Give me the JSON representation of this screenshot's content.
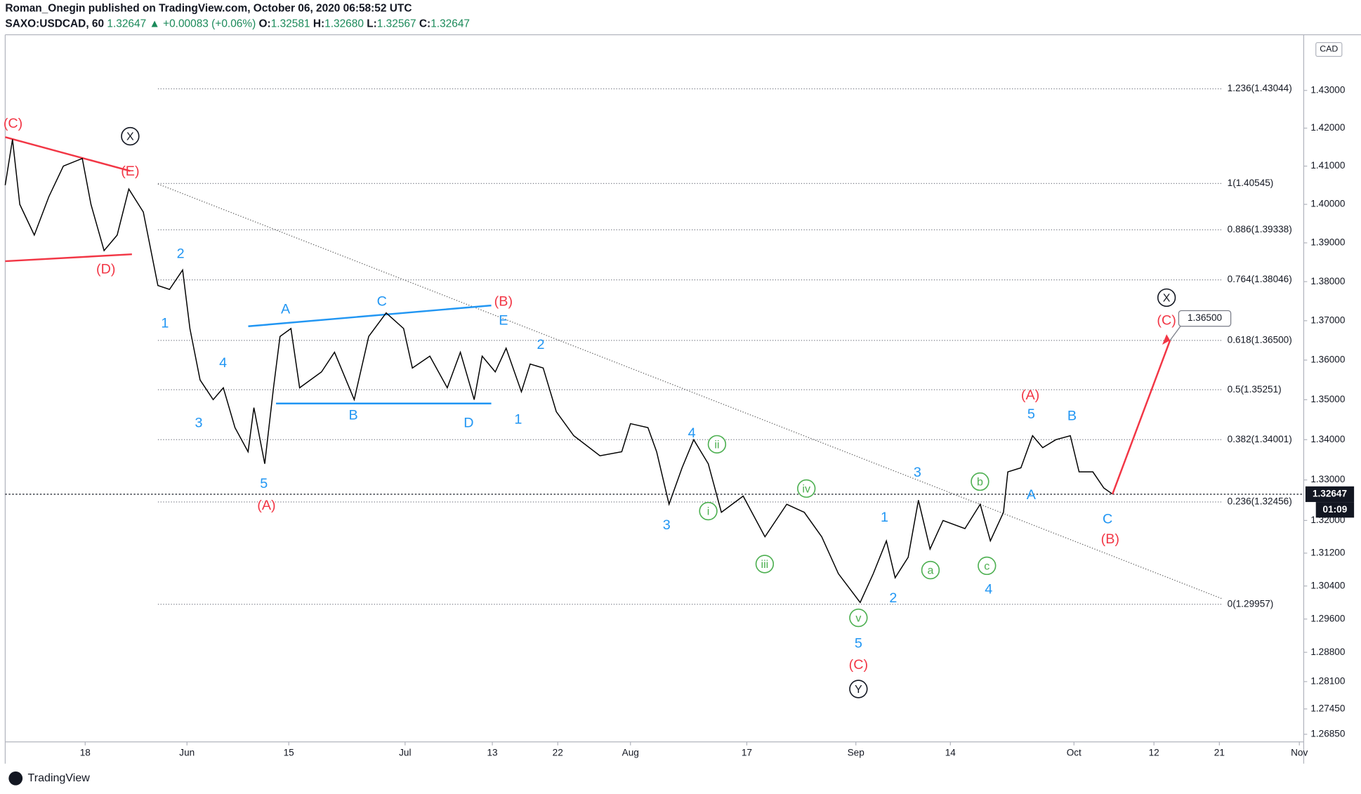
{
  "header": {
    "byline": "Roman_Onegin published on TradingView.com, October 06, 2020 06:58:52 UTC",
    "symbol": "SAXO:USDCAD, 60",
    "price": "1.32647",
    "change": "▲ +0.00083 (+0.06%)",
    "o_label": "O:",
    "o": "1.32581",
    "h_label": "H:",
    "h": "1.32680",
    "l_label": "L:",
    "l": "1.32567",
    "c_label": "C:",
    "c": "1.32647"
  },
  "footer": {
    "brand": "TradingView"
  },
  "chart_data": {
    "type": "line",
    "currency": "CAD",
    "log": true,
    "color": "#000000",
    "x": [
      128,
      129,
      130,
      132,
      134,
      136,
      138.6,
      139.8,
      141.6,
      143.4,
      145,
      147,
      149,
      150.6,
      152.4,
      153.4,
      154.8,
      156.6,
      158,
      159.6,
      161.4,
      162.2,
      163.7,
      164.9,
      165.8,
      167.3,
      168.5,
      171.5,
      173.3,
      176,
      178,
      180.4,
      182.8,
      184,
      186.4,
      188.8,
      190.6,
      192.5,
      193.6,
      195.4,
      196.9,
      199,
      200.2,
      202,
      203.8,
      206.2,
      209.8,
      212.8,
      214,
      216.4,
      217.6,
      219.3,
      221.1,
      222.7,
      224.7,
      226.5,
      229.5,
      232.5,
      235.5,
      237.9,
      240.3,
      242.6,
      245.6,
      247.4,
      249.2,
      250.4,
      252.2,
      253.6,
      255.2,
      257,
      260,
      262.1,
      263.5,
      265.3,
      265.9,
      267.7,
      269.3,
      270.7,
      272.5,
      274.5,
      275.7,
      277.6,
      279.1,
      280.3
    ],
    "values": [
      1.405,
      1.417,
      1.4,
      1.392,
      1.402,
      1.41,
      1.412,
      1.4,
      1.388,
      1.392,
      1.404,
      1.398,
      1.379,
      1.378,
      1.383,
      1.368,
      1.355,
      1.35,
      1.353,
      1.343,
      1.337,
      1.348,
      1.334,
      1.353,
      1.366,
      1.368,
      1.353,
      1.357,
      1.362,
      1.35,
      1.366,
      1.372,
      1.368,
      1.358,
      1.361,
      1.353,
      1.362,
      1.35,
      1.361,
      1.357,
      1.363,
      1.352,
      1.359,
      1.358,
      1.347,
      1.341,
      1.336,
      1.337,
      1.344,
      1.343,
      1.337,
      1.324,
      1.333,
      1.34,
      1.334,
      1.322,
      1.326,
      1.316,
      1.324,
      1.322,
      1.316,
      1.307,
      1.3,
      1.307,
      1.315,
      1.306,
      1.311,
      1.325,
      1.313,
      1.32,
      1.318,
      1.324,
      1.315,
      1.322,
      1.332,
      1.333,
      1.341,
      1.338,
      1.34,
      1.341,
      1.332,
      1.332,
      1.328,
      1.3265
    ],
    "xlim": [
      128,
      306.6
    ],
    "ylim": [
      1.2667,
      1.4449
    ],
    "xticks": [
      {
        "value": 139,
        "label": "18"
      },
      {
        "value": 153,
        "label": "Jun"
      },
      {
        "value": 167,
        "label": "15"
      },
      {
        "value": 183,
        "label": "Jul"
      },
      {
        "value": 195,
        "label": "13"
      },
      {
        "value": 204,
        "label": "22"
      },
      {
        "value": 214,
        "label": "Aug"
      },
      {
        "value": 230,
        "label": "17"
      },
      {
        "value": 245,
        "label": "Sep"
      },
      {
        "value": 258,
        "label": "14"
      },
      {
        "value": 275,
        "label": "Oct"
      },
      {
        "value": 286,
        "label": "12"
      },
      {
        "value": 295,
        "label": "21"
      },
      {
        "value": 306,
        "label": "Nov"
      }
    ],
    "yticks": [
      {
        "value": 1.43,
        "label": "1.43000"
      },
      {
        "value": 1.42,
        "label": "1.42000"
      },
      {
        "value": 1.41,
        "label": "1.41000"
      },
      {
        "value": 1.4,
        "label": "1.40000"
      },
      {
        "value": 1.39,
        "label": "1.39000"
      },
      {
        "value": 1.38,
        "label": "1.38000"
      },
      {
        "value": 1.37,
        "label": "1.37000"
      },
      {
        "value": 1.36,
        "label": "1.36000"
      },
      {
        "value": 1.35,
        "label": "1.35000"
      },
      {
        "value": 1.34,
        "label": "1.34000"
      },
      {
        "value": 1.33,
        "label": "1.33000"
      },
      {
        "value": 1.32,
        "label": "1.32000"
      },
      {
        "value": 1.312,
        "label": "1.31200"
      },
      {
        "value": 1.304,
        "label": "1.30400"
      },
      {
        "value": 1.296,
        "label": "1.29600"
      },
      {
        "value": 1.288,
        "label": "1.28800"
      },
      {
        "value": 1.281,
        "label": "1.28100"
      },
      {
        "value": 1.2745,
        "label": "1.27450"
      },
      {
        "value": 1.2685,
        "label": "1.26850"
      }
    ],
    "fib_levels": [
      {
        "value": 1.43044,
        "label": "1.236(1.43044)"
      },
      {
        "value": 1.40545,
        "label": "1(1.40545)"
      },
      {
        "value": 1.39338,
        "label": "0.886(1.39338)"
      },
      {
        "value": 1.38046,
        "label": "0.764(1.38046)"
      },
      {
        "value": 1.365,
        "label": "0.618(1.36500)"
      },
      {
        "value": 1.35251,
        "label": "0.5(1.35251)"
      },
      {
        "value": 1.34001,
        "label": "0.382(1.34001)"
      },
      {
        "value": 1.32456,
        "label": "0.236(1.32456)"
      },
      {
        "value": 1.29957,
        "label": "0(1.29957)"
      }
    ],
    "last_price": 1.32647,
    "countdown": "01:09",
    "target": {
      "value": 1.365,
      "label": "1.36500"
    },
    "wave_labels": [
      {
        "color": "#f23645",
        "circled": false,
        "labels": [
          "(C)",
          "(E)",
          "(D)",
          "(A)",
          "(B)",
          "(C)",
          "(A)",
          "(C)",
          "(B)"
        ]
      },
      {
        "color": "#2196f3",
        "circled": false,
        "labels": [
          "2",
          "1",
          "4",
          "3",
          "5",
          "A",
          "C",
          "E",
          "B",
          "D",
          "2",
          "1",
          "4",
          "3",
          "1",
          "2",
          "3",
          "4",
          "5",
          "5",
          "B",
          "A",
          "C"
        ]
      },
      {
        "color": "#4caf50",
        "circled": true,
        "labels": [
          "ii",
          "i",
          "iii",
          "iv",
          "v",
          "a",
          "b",
          "c"
        ]
      },
      {
        "color": "#131722",
        "circled": true,
        "labels": [
          "X",
          "X",
          "Y"
        ]
      }
    ]
  }
}
